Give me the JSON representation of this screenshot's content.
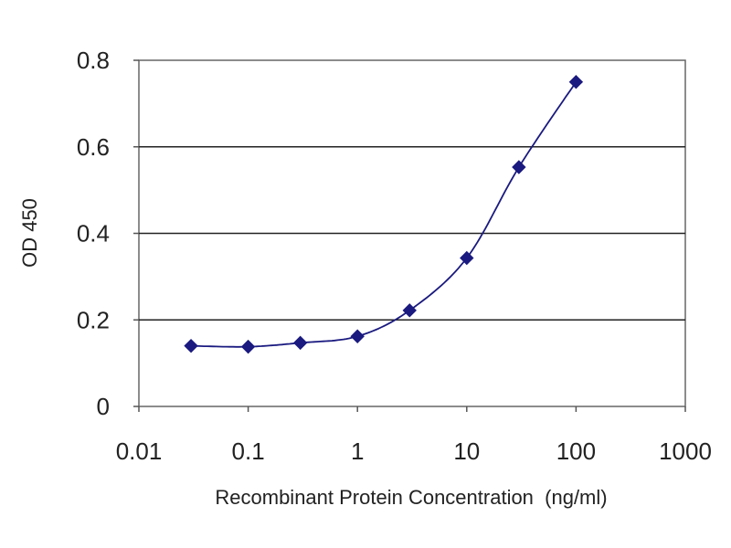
{
  "chart_data": {
    "type": "scatter",
    "title": "",
    "xlabel": "Recombinant Protein Concentration  (ng/ml)",
    "ylabel": "OD 450",
    "xscale": "log",
    "xlim": [
      0.01,
      1000
    ],
    "ylim": [
      0,
      0.8
    ],
    "xticks": [
      "0.01",
      "0.1",
      "1",
      "10",
      "100",
      "1000"
    ],
    "yticks": [
      "0",
      "0.2",
      "0.4",
      "0.6",
      "0.8"
    ],
    "grid": "horizontal",
    "legend": "none",
    "colors": {
      "series": "#1a1a80",
      "grid": "#222222",
      "axis": "#555555"
    },
    "series": [
      {
        "x": [
          0.03,
          0.1,
          0.3,
          1,
          3,
          10,
          30,
          100
        ],
        "y": [
          0.14,
          0.138,
          0.147,
          0.162,
          0.222,
          0.343,
          0.553,
          0.75
        ]
      }
    ]
  }
}
